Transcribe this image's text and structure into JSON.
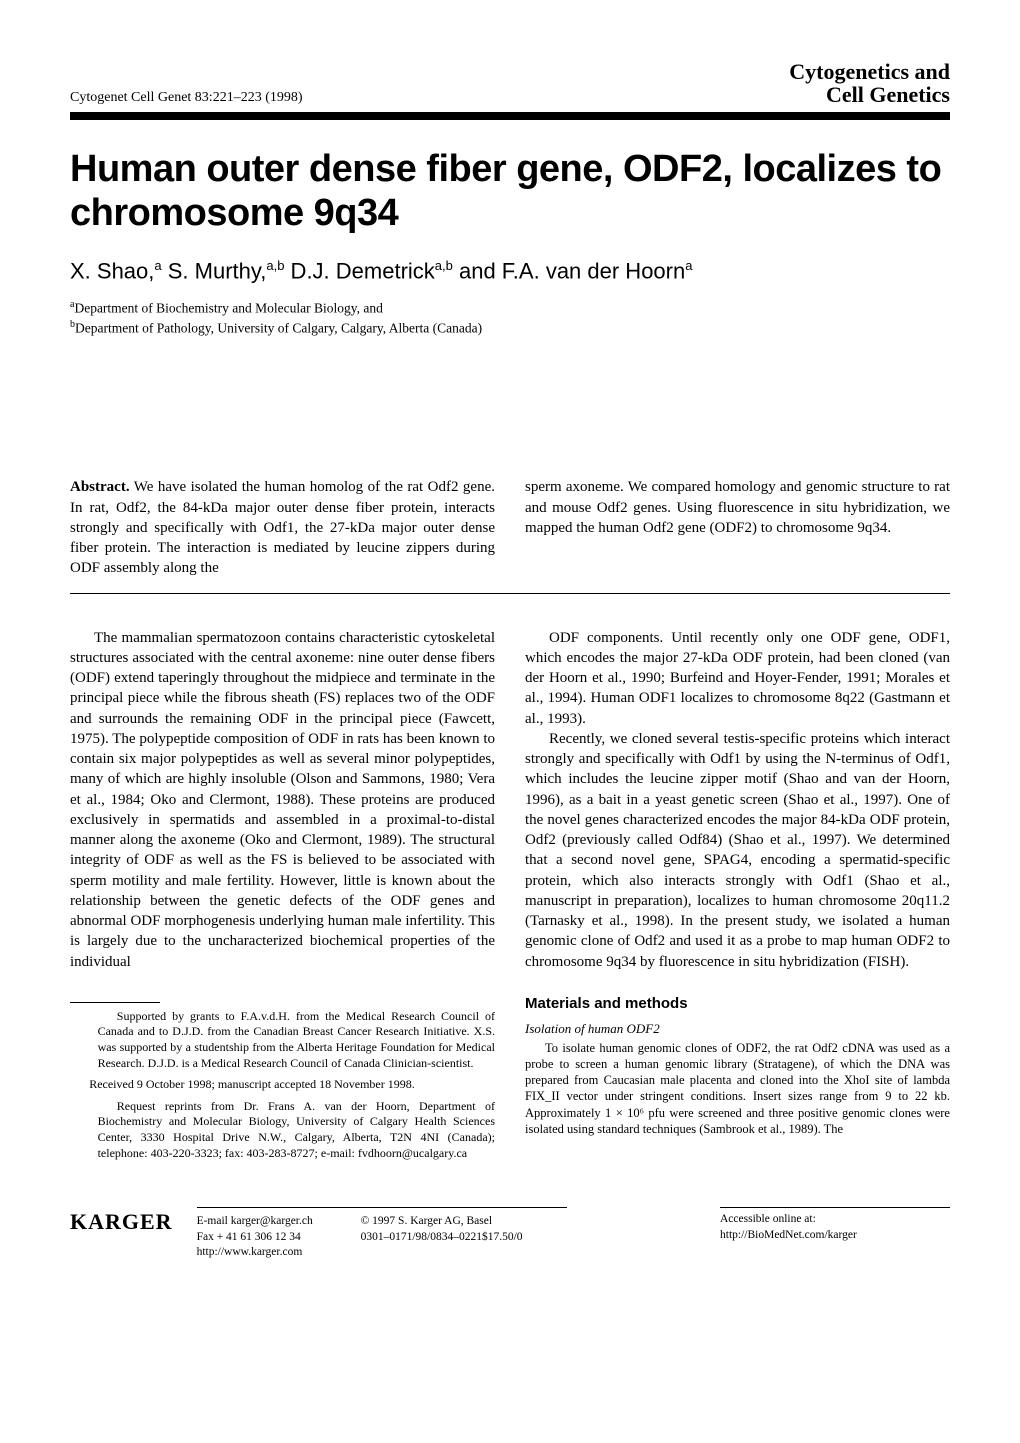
{
  "header": {
    "journal_ref": "Cytogenet Cell Genet 83:221–223 (1998)",
    "brand_line1": "Cytogenetics and",
    "brand_line2": "Cell Genetics"
  },
  "title": "Human outer dense fiber gene, ODF2, localizes to chromosome 9q34",
  "authors_html": "X. Shao,ᵃ S. Murthy,ᵃ·ᵇ D.J. Demetrickᵃ·ᵇ and F.A. van der Hoornᵃ",
  "affiliations": {
    "a": "Department of Biochemistry and Molecular Biology, and",
    "b": "Department of Pathology, University of Calgary, Calgary, Alberta (Canada)"
  },
  "abstract": {
    "label": "Abstract.",
    "left": " We have isolated the human homolog of the rat Odf2 gene. In rat, Odf2, the 84-kDa major outer dense fiber protein, interacts strongly and specifically with Odf1, the 27-kDa major outer dense fiber protein. The interaction is mediated by leucine zippers during ODF assembly along the",
    "right": "sperm axoneme. We compared homology and genomic structure to rat and mouse Odf2 genes. Using fluorescence in situ hybridization, we mapped the human Odf2 gene (ODF2) to chromosome 9q34."
  },
  "body": {
    "left_p1": "The mammalian spermatozoon contains characteristic cytoskeletal structures associated with the central axoneme: nine outer dense fibers (ODF) extend taperingly throughout the midpiece and terminate in the principal piece while the fibrous sheath (FS) replaces two of the ODF and surrounds the remaining ODF in the principal piece (Fawcett, 1975). The polypeptide composition of ODF in rats has been known to contain six major polypeptides as well as several minor polypeptides, many of which are highly insoluble (Olson and Sammons, 1980; Vera et al., 1984; Oko and Clermont, 1988). These proteins are produced exclusively in spermatids and assembled in a proximal-to-distal manner along the axoneme (Oko and Clermont, 1989). The structural integrity of ODF as well as the FS is believed to be associated with sperm motility and male fertility. However, little is known about the relationship between the genetic defects of the ODF genes and abnormal ODF morphogenesis underlying human male infertility. This is largely due to the uncharacterized biochemical properties of the individual",
    "right_p1": "ODF components. Until recently only one ODF gene, ODF1, which encodes the major 27-kDa ODF protein, had been cloned (van der Hoorn et al., 1990; Burfeind and Hoyer-Fender, 1991; Morales et al., 1994). Human ODF1 localizes to chromosome 8q22 (Gastmann et al., 1993).",
    "right_p2": "Recently, we cloned several testis-specific proteins which interact strongly and specifically with Odf1 by using the N-terminus of Odf1, which includes the leucine zipper motif (Shao and van der Hoorn, 1996), as a bait in a yeast genetic screen (Shao et al., 1997). One of the novel genes characterized encodes the major 84-kDa ODF protein, Odf2 (previously called Odf84) (Shao et al., 1997). We determined that a second novel gene, SPAG4, encoding a spermatid-specific protein, which also interacts strongly with Odf1 (Shao et al., manuscript in preparation), localizes to human chromosome 20q11.2 (Tarnasky et al., 1998). In the present study, we isolated a human genomic clone of Odf2 and used it as a probe to map human ODF2 to chromosome 9q34 by fluorescence in situ hybridization (FISH)."
  },
  "fineprint": {
    "support": "Supported by grants to F.A.v.d.H. from the Medical Research Council of Canada and to D.J.D. from the Canadian Breast Cancer Research Initiative. X.S. was supported by a studentship from the Alberta Heritage Foundation for Medical Research. D.J.D. is a Medical Research Council of Canada Clinician-scientist.",
    "received": "Received 9 October 1998; manuscript accepted 18 November 1998.",
    "reprints": "Request reprints from Dr. Frans A. van der Hoorn, Department of Biochemistry and Molecular Biology, University of Calgary Health Sciences Center, 3330 Hospital Drive N.W., Calgary, Alberta, T2N 4NI (Canada); telephone: 403-220-3323; fax: 403-283-8727; e-mail: fvdhoorn@ucalgary.ca"
  },
  "methods": {
    "heading": "Materials and methods",
    "sub1": "Isolation of human ODF2",
    "text1": "To isolate human genomic clones of ODF2, the rat Odf2 cDNA was used as a probe to screen a human genomic library (Stratagene), of which the DNA was prepared from Caucasian male placenta and cloned into the XhoI site of lambda FIX_II vector under stringent conditions. Insert sizes range from 9 to 22 kb. Approximately 1 × 10⁶ pfu were screened and three positive genomic clones were isolated using standard techniques (Sambrook et al., 1989). The"
  },
  "footer": {
    "karger": "KARGER",
    "col_a": "E-mail karger@karger.ch\nFax + 41 61 306 12 34\nhttp://www.karger.com",
    "col_b": "© 1997 S. Karger AG, Basel\n0301–0171/98/0834–0221$17.50/0",
    "col_c": "Accessible online at:\nhttp://BioMedNet.com/karger"
  }
}
